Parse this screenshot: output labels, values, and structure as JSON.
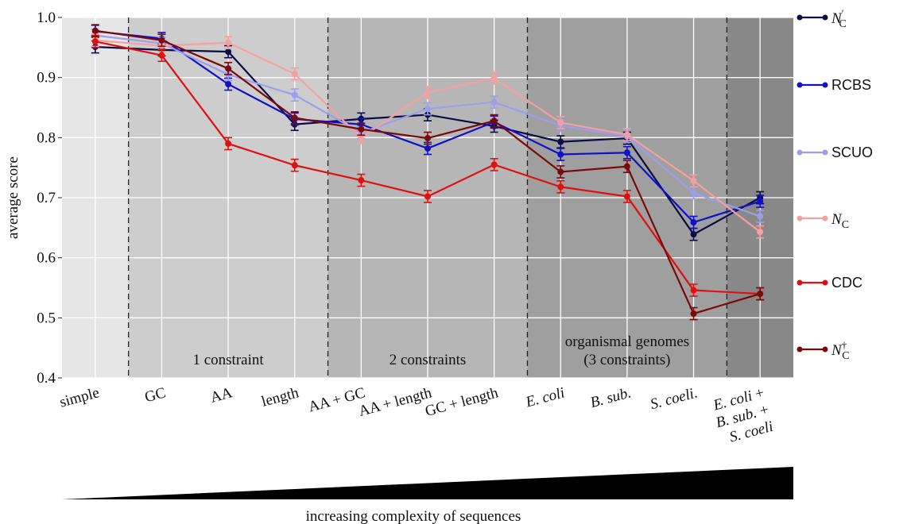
{
  "chart_data": {
    "type": "line",
    "ylabel": "average score",
    "xlabel": "increasing complexity of sequences",
    "ylim": [
      0.4,
      1.0
    ],
    "yticks": [
      "0.4",
      "0.5",
      "0.6",
      "0.7",
      "0.8",
      "0.9",
      "1.0"
    ],
    "grid": true,
    "legend_position": "right",
    "categories": [
      "simple",
      "GC",
      "AA",
      "length",
      "AA + GC",
      "AA + length",
      "GC + length",
      "E. coli",
      "B. sub.",
      "S. coeli.",
      "E. coli + B. sub. + S. coeli"
    ],
    "category_lines": [
      [
        "simple"
      ],
      [
        "GC"
      ],
      [
        "AA"
      ],
      [
        "length"
      ],
      [
        "AA + GC"
      ],
      [
        "AA + length"
      ],
      [
        "GC + length"
      ],
      [
        "E. coli"
      ],
      [
        "B. sub."
      ],
      [
        "S. coeli."
      ],
      [
        "E. coli +",
        "B. sub. +",
        "S. coeli"
      ]
    ],
    "bands": [
      {
        "label": "",
        "from": -0.5,
        "to": 0.5,
        "color": "#e6e6e6"
      },
      {
        "label": "1 constraint",
        "from": 0.5,
        "to": 3.5,
        "color": "#cdcdcd"
      },
      {
        "label": "2 constraints",
        "from": 3.5,
        "to": 6.5,
        "color": "#b6b6b6"
      },
      {
        "label": "organismal genomes (3 constraints)",
        "label_lines": [
          "organismal genomes",
          "(3 constraints)"
        ],
        "from": 6.5,
        "to": 9.5,
        "color": "#9f9f9f"
      },
      {
        "label": "",
        "from": 9.5,
        "to": 10.5,
        "color": "#888888"
      }
    ],
    "series": [
      {
        "name": "N′C",
        "legend_main": "N",
        "legend_sup": "′",
        "legend_sub": "C",
        "color": "#0b0b45",
        "values": [
          0.951,
          0.946,
          0.943,
          0.822,
          0.831,
          0.838,
          0.819,
          0.793,
          0.799,
          0.639,
          0.7
        ],
        "errors": [
          0.01,
          0.01,
          0.01,
          0.01,
          0.01,
          0.01,
          0.01,
          0.01,
          0.01,
          0.01,
          0.01
        ]
      },
      {
        "name": "RCBS",
        "color": "#1010c8",
        "values": [
          0.977,
          0.965,
          0.889,
          0.831,
          0.822,
          0.782,
          0.826,
          0.772,
          0.775,
          0.659,
          0.694
        ],
        "errors": [
          0.01,
          0.01,
          0.01,
          0.01,
          0.01,
          0.01,
          0.01,
          0.01,
          0.01,
          0.01,
          0.01
        ]
      },
      {
        "name": "SCUO",
        "color": "#9d9dee",
        "values": [
          0.97,
          0.957,
          0.905,
          0.871,
          0.808,
          0.848,
          0.859,
          0.82,
          0.802,
          0.708,
          0.669
        ],
        "errors": [
          0.01,
          0.01,
          0.01,
          0.01,
          0.01,
          0.01,
          0.01,
          0.01,
          0.01,
          0.01,
          0.01
        ]
      },
      {
        "name": "NC",
        "legend_main": "N",
        "legend_sub": "C",
        "color": "#f5a0a0",
        "values": [
          0.962,
          0.953,
          0.958,
          0.906,
          0.8,
          0.875,
          0.899,
          0.825,
          0.805,
          0.728,
          0.643
        ],
        "errors": [
          0.01,
          0.01,
          0.01,
          0.01,
          0.01,
          0.01,
          0.01,
          0.01,
          0.01,
          0.01,
          0.01
        ]
      },
      {
        "name": "CDC",
        "color": "#e01010",
        "values": [
          0.96,
          0.937,
          0.79,
          0.754,
          0.729,
          0.702,
          0.755,
          0.718,
          0.702,
          0.546,
          0.54
        ],
        "errors": [
          0.01,
          0.01,
          0.01,
          0.01,
          0.01,
          0.01,
          0.01,
          0.01,
          0.01,
          0.01,
          0.01
        ]
      },
      {
        "name": "N†C",
        "legend_main": "N",
        "legend_sup": "†",
        "legend_sub": "C",
        "color": "#7a0a0a",
        "values": [
          0.978,
          0.962,
          0.915,
          0.833,
          0.814,
          0.799,
          0.828,
          0.743,
          0.752,
          0.507,
          0.54
        ],
        "errors": [
          0.01,
          0.01,
          0.01,
          0.01,
          0.01,
          0.01,
          0.01,
          0.01,
          0.01,
          0.01,
          0.01
        ]
      }
    ]
  }
}
